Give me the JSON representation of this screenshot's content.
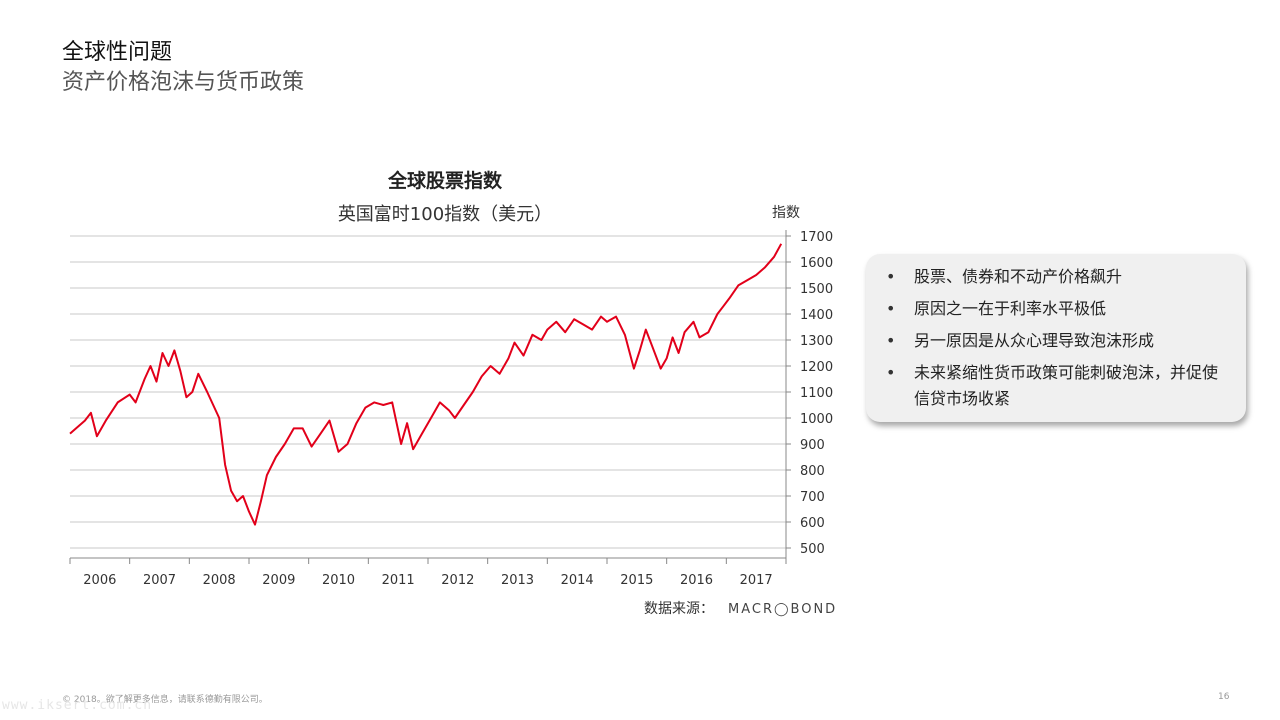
{
  "header": {
    "title": "全球性问题",
    "subtitle": "资产价格泡沫与货币政策"
  },
  "chart_data": {
    "type": "line",
    "title": "全球股票指数",
    "subtitle": "英国富时100指数（美元）",
    "ylabel": "指数",
    "ylim": [
      500,
      1700
    ],
    "yticks": [
      500,
      600,
      700,
      800,
      900,
      1000,
      1100,
      1200,
      1300,
      1400,
      1500,
      1600,
      1700
    ],
    "xlim": [
      2006,
      2018
    ],
    "xticks": [
      "2006",
      "2007",
      "2008",
      "2009",
      "2010",
      "2011",
      "2012",
      "2013",
      "2014",
      "2015",
      "2016",
      "2017"
    ],
    "grid": "horizontal",
    "series": [
      {
        "color": "#e2001a",
        "x": [
          2006.0,
          2006.1,
          2006.25,
          2006.35,
          2006.45,
          2006.6,
          2006.8,
          2007.0,
          2007.1,
          2007.25,
          2007.35,
          2007.45,
          2007.55,
          2007.65,
          2007.75,
          2007.85,
          2007.95,
          2008.05,
          2008.15,
          2008.3,
          2008.4,
          2008.5,
          2008.6,
          2008.7,
          2008.8,
          2008.9,
          2009.0,
          2009.1,
          2009.2,
          2009.3,
          2009.45,
          2009.6,
          2009.75,
          2009.9,
          2010.05,
          2010.2,
          2010.35,
          2010.5,
          2010.65,
          2010.8,
          2010.95,
          2011.1,
          2011.25,
          2011.4,
          2011.55,
          2011.65,
          2011.75,
          2011.9,
          2012.05,
          2012.2,
          2012.35,
          2012.45,
          2012.6,
          2012.75,
          2012.9,
          2013.05,
          2013.2,
          2013.35,
          2013.45,
          2013.6,
          2013.75,
          2013.9,
          2014.0,
          2014.15,
          2014.3,
          2014.45,
          2014.6,
          2014.75,
          2014.9,
          2015.0,
          2015.15,
          2015.3,
          2015.45,
          2015.55,
          2015.65,
          2015.75,
          2015.9,
          2016.0,
          2016.1,
          2016.2,
          2016.3,
          2016.45,
          2016.55,
          2016.7,
          2016.85,
          2016.95,
          2017.05,
          2017.2,
          2017.35,
          2017.5,
          2017.65,
          2017.8,
          2017.92
        ],
        "y": [
          940,
          960,
          990,
          1020,
          930,
          990,
          1060,
          1090,
          1060,
          1150,
          1200,
          1140,
          1250,
          1200,
          1260,
          1180,
          1080,
          1100,
          1170,
          1100,
          1050,
          1000,
          820,
          720,
          680,
          700,
          640,
          590,
          680,
          780,
          850,
          900,
          960,
          960,
          890,
          940,
          990,
          870,
          900,
          980,
          1040,
          1060,
          1050,
          1060,
          900,
          980,
          880,
          940,
          1000,
          1060,
          1030,
          1000,
          1050,
          1100,
          1160,
          1200,
          1170,
          1230,
          1290,
          1240,
          1320,
          1300,
          1340,
          1370,
          1330,
          1380,
          1360,
          1340,
          1390,
          1370,
          1390,
          1320,
          1190,
          1260,
          1340,
          1280,
          1190,
          1230,
          1310,
          1250,
          1330,
          1370,
          1310,
          1330,
          1400,
          1430,
          1460,
          1510,
          1530,
          1550,
          1580,
          1620,
          1670
        ]
      }
    ]
  },
  "source": {
    "label": "数据来源：",
    "brand": "MACR◯BOND"
  },
  "bullets": [
    "股票、债券和不动产价格飙升",
    "原因之一在于利率水平极低",
    "另一原因是从众心理导致泡沫形成",
    "未来紧缩性货币政策可能刺破泡沫，并促使信贷市场收紧"
  ],
  "footer": {
    "copyright": "© 2018。欲了解更多信息，请联系德勤有限公司。",
    "page_number": "16",
    "watermark": "www.iksert.com.cn"
  }
}
